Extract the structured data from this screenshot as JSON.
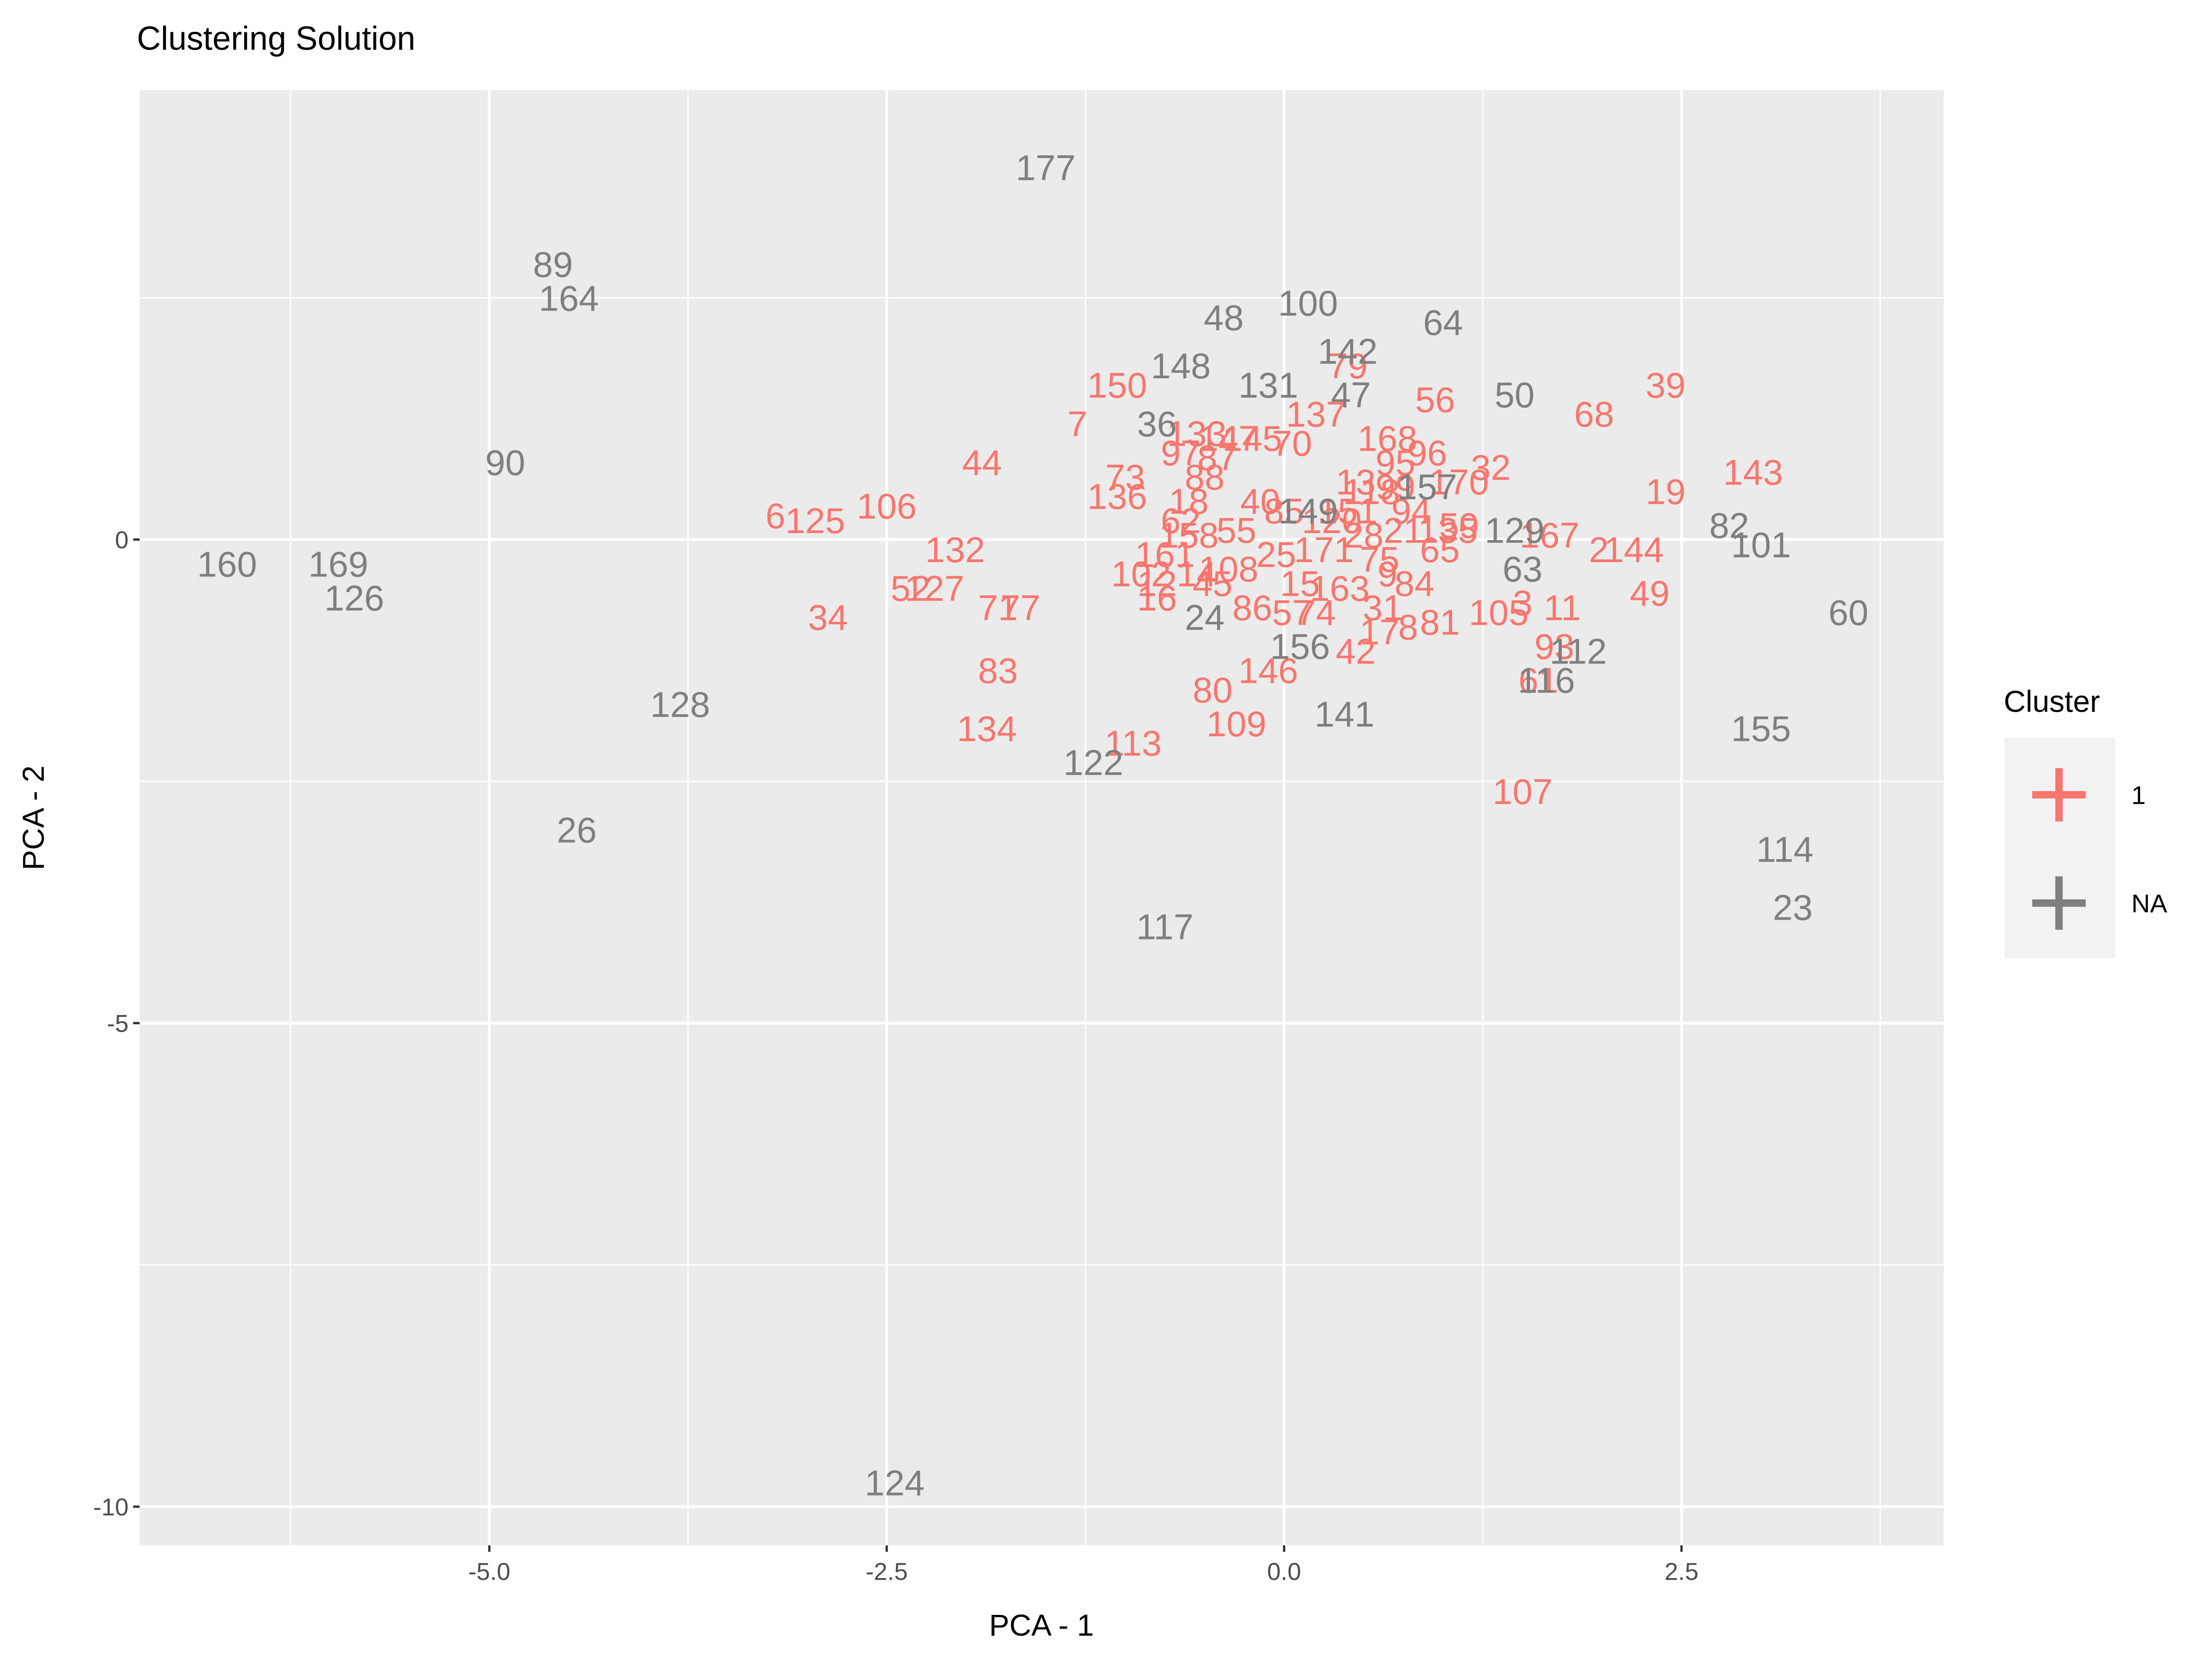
{
  "chart_data": {
    "type": "scatter",
    "title": "Clustering Solution",
    "xlabel": "PCA - 1",
    "ylabel": "PCA - 2",
    "xlim": [
      -7.2,
      4.15
    ],
    "ylim": [
      -10.4,
      4.65
    ],
    "x_ticks": [
      -5.0,
      -2.5,
      0.0,
      2.5
    ],
    "x_tick_labels": [
      "-5.0",
      "-2.5",
      "0.0",
      "2.5"
    ],
    "y_ticks": [
      -10,
      -5,
      0
    ],
    "y_tick_labels": [
      "-10",
      "-5",
      "0"
    ],
    "grid": true,
    "legend": {
      "title": "Cluster",
      "position": "right",
      "entries": [
        {
          "label": "1",
          "color": "#F8766D"
        },
        {
          "label": "NA",
          "color": "#7F7F7F"
        }
      ]
    },
    "colors": {
      "1": "#F8766D",
      "NA": "#7F7F7F",
      "panel": "#EBEBEB",
      "grid": "#FFFFFF"
    },
    "series": [
      {
        "name": "1",
        "color": "#F8766D",
        "points": [
          {
            "label": "39",
            "x": 2.4,
            "y": 1.6
          },
          {
            "label": "68",
            "x": 1.95,
            "y": 1.3
          },
          {
            "label": "143",
            "x": 2.95,
            "y": 0.7
          },
          {
            "label": "19",
            "x": 2.4,
            "y": 0.5
          },
          {
            "label": "144",
            "x": 2.2,
            "y": -0.1
          },
          {
            "label": "2",
            "x": 1.98,
            "y": -0.1
          },
          {
            "label": "49",
            "x": 2.3,
            "y": -0.55
          },
          {
            "label": "56",
            "x": 0.95,
            "y": 1.45
          },
          {
            "label": "79",
            "x": 0.4,
            "y": 1.8
          },
          {
            "label": "137",
            "x": 0.2,
            "y": 1.3
          },
          {
            "label": "150",
            "x": -1.05,
            "y": 1.6
          },
          {
            "label": "7",
            "x": -1.3,
            "y": 1.2
          },
          {
            "label": "44",
            "x": -1.9,
            "y": 0.8
          },
          {
            "label": "106",
            "x": -2.5,
            "y": 0.35
          },
          {
            "label": "6",
            "x": -3.2,
            "y": 0.25
          },
          {
            "label": "125",
            "x": -2.95,
            "y": 0.2
          },
          {
            "label": "132",
            "x": -2.07,
            "y": -0.1
          },
          {
            "label": "52",
            "x": -2.35,
            "y": -0.5
          },
          {
            "label": "127",
            "x": -2.2,
            "y": -0.5
          },
          {
            "label": "34",
            "x": -2.87,
            "y": -0.8
          },
          {
            "label": "77",
            "x": -1.66,
            "y": -0.7
          },
          {
            "label": "71",
            "x": -1.8,
            "y": -0.7
          },
          {
            "label": "83",
            "x": -1.8,
            "y": -1.35
          },
          {
            "label": "134",
            "x": -1.87,
            "y": -1.95
          },
          {
            "label": "113",
            "x": -0.95,
            "y": -2.1
          },
          {
            "label": "80",
            "x": -0.45,
            "y": -1.55
          },
          {
            "label": "146",
            "x": -0.1,
            "y": -1.35
          },
          {
            "label": "109",
            "x": -0.3,
            "y": -1.9
          },
          {
            "label": "107",
            "x": 1.5,
            "y": -2.6
          },
          {
            "label": "105",
            "x": 1.35,
            "y": -0.75
          },
          {
            "label": "11",
            "x": 1.75,
            "y": -0.7
          },
          {
            "label": "3",
            "x": 1.5,
            "y": -0.65
          },
          {
            "label": "93",
            "x": 1.7,
            "y": -1.1
          },
          {
            "label": "61",
            "x": 1.6,
            "y": -1.45
          },
          {
            "label": "167",
            "x": 1.67,
            "y": 0.05
          },
          {
            "label": "59",
            "x": 1.1,
            "y": 0.15
          },
          {
            "label": "32",
            "x": 1.3,
            "y": 0.75
          },
          {
            "label": "170",
            "x": 1.1,
            "y": 0.6
          },
          {
            "label": "96",
            "x": 0.9,
            "y": 0.9
          },
          {
            "label": "168",
            "x": 0.65,
            "y": 1.05
          },
          {
            "label": "95",
            "x": 0.7,
            "y": 0.8
          },
          {
            "label": "81",
            "x": 0.98,
            "y": -0.85
          },
          {
            "label": "8",
            "x": 0.78,
            "y": -0.9
          },
          {
            "label": "17",
            "x": 0.6,
            "y": -0.95
          },
          {
            "label": "42",
            "x": 0.45,
            "y": -1.15
          },
          {
            "label": "31",
            "x": 0.62,
            "y": -0.7
          },
          {
            "label": "84",
            "x": 0.82,
            "y": -0.45
          },
          {
            "label": "65",
            "x": 0.98,
            "y": -0.1
          },
          {
            "label": "135",
            "x": 1.03,
            "y": 0.1
          },
          {
            "label": "145",
            "x": -0.2,
            "y": 1.05
          },
          {
            "label": "70",
            "x": 0.05,
            "y": 1.0
          },
          {
            "label": "133",
            "x": -0.55,
            "y": 1.1
          },
          {
            "label": "147",
            "x": -0.35,
            "y": 1.05
          },
          {
            "label": "97",
            "x": -0.65,
            "y": 0.9
          },
          {
            "label": "87",
            "x": -0.42,
            "y": 0.85
          },
          {
            "label": "88",
            "x": -0.5,
            "y": 0.65
          },
          {
            "label": "73",
            "x": -1.0,
            "y": 0.65
          },
          {
            "label": "136",
            "x": -1.05,
            "y": 0.45
          },
          {
            "label": "62",
            "x": -0.65,
            "y": 0.2
          },
          {
            "label": "18",
            "x": -0.6,
            "y": 0.4
          },
          {
            "label": "158",
            "x": -0.6,
            "y": 0.05
          },
          {
            "label": "161",
            "x": -0.75,
            "y": -0.15
          },
          {
            "label": "102",
            "x": -0.9,
            "y": -0.35
          },
          {
            "label": "12",
            "x": -0.8,
            "y": -0.45
          },
          {
            "label": "16",
            "x": -0.8,
            "y": -0.6
          },
          {
            "label": "14",
            "x": -0.55,
            "y": -0.35
          },
          {
            "label": "45",
            "x": -0.45,
            "y": -0.45
          },
          {
            "label": "108",
            "x": -0.35,
            "y": -0.3
          },
          {
            "label": "86",
            "x": -0.2,
            "y": -0.7
          },
          {
            "label": "57",
            "x": 0.05,
            "y": -0.75
          },
          {
            "label": "74",
            "x": 0.2,
            "y": -0.75
          },
          {
            "label": "15",
            "x": 0.1,
            "y": -0.45
          },
          {
            "label": "163",
            "x": 0.35,
            "y": -0.5
          },
          {
            "label": "120",
            "x": 0.3,
            "y": 0.2
          },
          {
            "label": "151",
            "x": 0.4,
            "y": 0.3
          },
          {
            "label": "118",
            "x": 0.55,
            "y": 0.5
          },
          {
            "label": "99",
            "x": 0.7,
            "y": 0.55
          },
          {
            "label": "171",
            "x": 0.25,
            "y": -0.1
          },
          {
            "label": "75",
            "x": 0.6,
            "y": -0.2
          },
          {
            "label": "13",
            "x": 0.45,
            "y": 0.6
          },
          {
            "label": "40",
            "x": -0.15,
            "y": 0.4
          },
          {
            "label": "85",
            "x": 0.0,
            "y": 0.3
          },
          {
            "label": "55",
            "x": -0.3,
            "y": 0.1
          },
          {
            "label": "21",
            "x": 0.75,
            "y": 0.1
          },
          {
            "label": "94",
            "x": 0.8,
            "y": 0.3
          },
          {
            "label": "25",
            "x": -0.05,
            "y": -0.15
          },
          {
            "label": "9",
            "x": 0.65,
            "y": -0.35
          },
          {
            "label": "28",
            "x": 0.5,
            "y": 0.05
          }
        ]
      },
      {
        "name": "NA",
        "color": "#7F7F7F",
        "points": [
          {
            "label": "177",
            "x": -1.5,
            "y": 3.85
          },
          {
            "label": "89",
            "x": -4.6,
            "y": 2.85
          },
          {
            "label": "164",
            "x": -4.5,
            "y": 2.5
          },
          {
            "label": "90",
            "x": -4.9,
            "y": 0.8
          },
          {
            "label": "160",
            "x": -6.65,
            "y": -0.25
          },
          {
            "label": "169",
            "x": -5.95,
            "y": -0.25
          },
          {
            "label": "126",
            "x": -5.85,
            "y": -0.6
          },
          {
            "label": "128",
            "x": -3.8,
            "y": -1.7
          },
          {
            "label": "26",
            "x": -4.45,
            "y": -3.0
          },
          {
            "label": "124",
            "x": -2.45,
            "y": -9.75
          },
          {
            "label": "117",
            "x": -0.75,
            "y": -4.0
          },
          {
            "label": "122",
            "x": -1.2,
            "y": -2.3
          },
          {
            "label": "141",
            "x": 0.38,
            "y": -1.8
          },
          {
            "label": "156",
            "x": 0.1,
            "y": -1.1
          },
          {
            "label": "24",
            "x": -0.5,
            "y": -0.8
          },
          {
            "label": "36",
            "x": -0.8,
            "y": 1.2
          },
          {
            "label": "148",
            "x": -0.65,
            "y": 1.8
          },
          {
            "label": "131",
            "x": -0.1,
            "y": 1.6
          },
          {
            "label": "48",
            "x": -0.38,
            "y": 2.3
          },
          {
            "label": "100",
            "x": 0.15,
            "y": 2.45
          },
          {
            "label": "142",
            "x": 0.4,
            "y": 1.95
          },
          {
            "label": "47",
            "x": 0.42,
            "y": 1.5
          },
          {
            "label": "64",
            "x": 1.0,
            "y": 2.25
          },
          {
            "label": "50",
            "x": 1.45,
            "y": 1.5
          },
          {
            "label": "149",
            "x": 0.15,
            "y": 0.3
          },
          {
            "label": "157",
            "x": 0.9,
            "y": 0.55
          },
          {
            "label": "129",
            "x": 1.45,
            "y": 0.1
          },
          {
            "label": "63",
            "x": 1.5,
            "y": -0.3
          },
          {
            "label": "112",
            "x": 1.85,
            "y": -1.15
          },
          {
            "label": "116",
            "x": 1.65,
            "y": -1.45
          },
          {
            "label": "82",
            "x": 2.8,
            "y": 0.15
          },
          {
            "label": "101",
            "x": 3.0,
            "y": -0.05
          },
          {
            "label": "60",
            "x": 3.55,
            "y": -0.75
          },
          {
            "label": "155",
            "x": 3.0,
            "y": -1.95
          },
          {
            "label": "114",
            "x": 3.15,
            "y": -3.2
          },
          {
            "label": "23",
            "x": 3.2,
            "y": -3.8
          }
        ]
      }
    ]
  }
}
